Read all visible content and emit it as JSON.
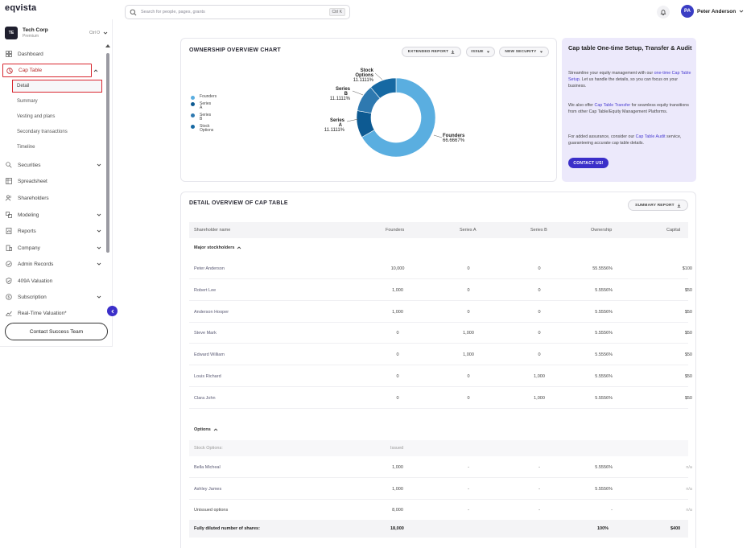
{
  "app": {
    "logo": "eqvista"
  },
  "search": {
    "placeholder": "Search for people, pages, grants",
    "shortcut": "Ctrl K"
  },
  "user": {
    "initials": "PA",
    "name": "Peter Anderson"
  },
  "company": {
    "initials": "TE",
    "name": "Tech Corp",
    "plan": "Premium",
    "shortcut": "Ctrl O"
  },
  "sidebar": {
    "items": [
      {
        "label": "Dashboard",
        "icon": "dashboard-icon"
      },
      {
        "label": "Cap Table",
        "icon": "pie-chart-icon"
      },
      {
        "label": "Securities",
        "icon": "securities-icon"
      },
      {
        "label": "Spreadsheet",
        "icon": "grid-icon"
      },
      {
        "label": "Shareholders",
        "icon": "users-icon"
      },
      {
        "label": "Modeling",
        "icon": "modeling-icon"
      },
      {
        "label": "Reports",
        "icon": "report-icon"
      },
      {
        "label": "Company",
        "icon": "building-icon"
      },
      {
        "label": "Admin Records",
        "icon": "records-icon"
      },
      {
        "label": "409A Valuation",
        "icon": "shield-check-icon"
      },
      {
        "label": "Subscription",
        "icon": "subscription-icon"
      },
      {
        "label": "Real-Time Valuation*",
        "icon": "trend-icon"
      }
    ],
    "cap_table_sub": [
      "Detail",
      "Summary",
      "Vesting and plans",
      "Secondary transactions",
      "Timeline"
    ],
    "contact_button": "Contact Success Team"
  },
  "ownership": {
    "title": "OWNERSHIP OVERVIEW CHART",
    "buttons": {
      "extended_report": "EXTENDED REPORT",
      "issue": "ISSUE",
      "new_security": "NEW SECURITY"
    }
  },
  "chart_data": {
    "type": "pie",
    "variant": "donut",
    "categories": [
      "Founders",
      "Series A",
      "Series B",
      "Stock Options"
    ],
    "values": [
      66.6667,
      11.1111,
      11.1111,
      11.1111
    ],
    "value_labels": [
      "66.6667%",
      "11.1111%",
      "11.1111%",
      "11.1111%"
    ],
    "colors": [
      "#5aaee0",
      "#0d5a92",
      "#2e79b0",
      "#1669a3"
    ],
    "legend_position": "left"
  },
  "promo": {
    "title": "Cap table One-time Setup, Transfer & Audit",
    "p1_a": "Streamline your equity management with our ",
    "p1_link": "one-time Cap Table Setup",
    "p1_b": ". Let us handle the details, so you can focus on your business.",
    "p2_a": "We also offer ",
    "p2_link": "Cap Table Transfer",
    "p2_b": " for seamless equity transitions from other Cap Table/Equity Management Platforms.",
    "p3_a": "For added assurance, consider our ",
    "p3_link": "Cap Table Audit",
    "p3_b": " service, guaranteeing accurate cap table details.",
    "button": "CONTACT US!"
  },
  "detail": {
    "title": "DETAIL OVERVIEW OF CAP TABLE",
    "summary_button": "SUMMARY REPORT",
    "columns": [
      "Shareholder name",
      "Founders",
      "Series A",
      "Series B",
      "Ownership",
      "Capital"
    ],
    "major_label": "Major stockholders",
    "major_rows": [
      [
        "Peter Anderson",
        "10,000",
        "0",
        "0",
        "55.5556%",
        "$100"
      ],
      [
        "Robert Lee",
        "1,000",
        "0",
        "0",
        "5.5556%",
        "$50"
      ],
      [
        "Anderson Hooper",
        "1,000",
        "0",
        "0",
        "5.5556%",
        "$50"
      ],
      [
        "Steve Mark",
        "0",
        "1,000",
        "0",
        "5.5556%",
        "$50"
      ],
      [
        "Edward William",
        "0",
        "1,000",
        "0",
        "5.5556%",
        "$50"
      ],
      [
        "Louis Richard",
        "0",
        "0",
        "1,000",
        "5.5556%",
        "$50"
      ],
      [
        "Clara John",
        "0",
        "0",
        "1,000",
        "5.5556%",
        "$50"
      ]
    ],
    "options_label": "Options",
    "options_subhead": [
      "Stock Options:",
      "Issued"
    ],
    "option_rows": [
      [
        "Bella Micheal",
        "1,000",
        "-",
        "-",
        "5.5556%",
        "n/a"
      ],
      [
        "Ashley James",
        "1,000",
        "-",
        "-",
        "5.5556%",
        "n/a"
      ],
      [
        "Unissued options",
        "8,000",
        "-",
        "-",
        "-",
        "n/a"
      ]
    ],
    "total_row": [
      "Fully diluted number of shares:",
      "18,000",
      "",
      "",
      "100%",
      "$400"
    ]
  }
}
